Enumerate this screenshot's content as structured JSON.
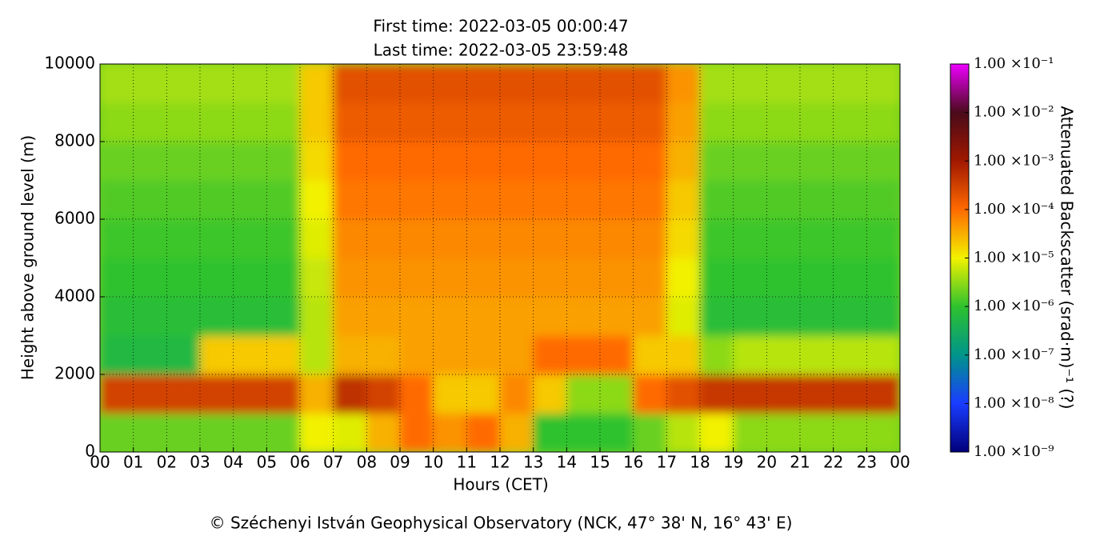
{
  "chart_data": {
    "type": "heatmap",
    "title": [
      "First time: 2022-03-05 00:00:47",
      "Last time: 2022-03-05 23:59:48"
    ],
    "xlabel": "Hours (CET)",
    "ylabel": "Height above ground level (m)",
    "colorbar_label": "Attenuated Backscatter (srad·m)⁻¹ (?)",
    "footer": "© Széchenyi István Geophysical Observatory (NCK, 47° 38' N, 16° 43' E)",
    "x": [
      0,
      1,
      2,
      3,
      4,
      5,
      6,
      7,
      8,
      9,
      10,
      11,
      12,
      13,
      14,
      15,
      16,
      17,
      18,
      19,
      20,
      21,
      22,
      23,
      24
    ],
    "y": [
      0,
      1000,
      2000,
      3000,
      4000,
      5000,
      6000,
      7000,
      8000,
      9000,
      10000
    ],
    "z": [
      [
        2e-06,
        2e-06,
        2e-06,
        2e-06,
        2e-06,
        2e-06,
        1e-05,
        8e-06,
        3e-05,
        0.0001,
        5e-05,
        0.0001,
        3e-05,
        1e-06,
        1e-06,
        1e-06,
        2e-06,
        5e-06,
        1e-05,
        3e-06,
        3e-06,
        3e-06,
        3e-06,
        3e-06
      ],
      [
        0.0003,
        0.0003,
        0.0003,
        0.0003,
        0.0003,
        0.0003,
        3e-05,
        0.0005,
        0.0003,
        0.0001,
        2e-05,
        2e-05,
        6e-05,
        2e-05,
        3e-06,
        3e-06,
        0.0001,
        0.0002,
        0.0004,
        0.0004,
        0.0004,
        0.0004,
        0.0004,
        0.0004
      ],
      [
        6e-07,
        6e-07,
        6e-07,
        2e-05,
        2e-05,
        2e-05,
        5e-06,
        3e-05,
        3e-05,
        4e-05,
        4e-05,
        4e-05,
        4e-05,
        0.0001,
        0.0001,
        0.0001,
        2e-05,
        2e-05,
        3e-06,
        5e-06,
        5e-06,
        5e-06,
        5e-06,
        5e-06
      ],
      [
        8e-07,
        8e-07,
        8e-07,
        8e-07,
        8e-07,
        8e-07,
        5e-06,
        4e-05,
        4e-05,
        4e-05,
        4e-05,
        4e-05,
        4e-05,
        4e-05,
        4e-05,
        4e-05,
        4e-05,
        8e-06,
        8e-07,
        8e-07,
        8e-07,
        8e-07,
        8e-07,
        8e-07
      ],
      [
        1e-06,
        1e-06,
        1e-06,
        1e-06,
        1e-06,
        1e-06,
        6e-06,
        5e-05,
        5e-05,
        5e-05,
        5e-05,
        5e-05,
        5e-05,
        5e-05,
        5e-05,
        5e-05,
        5e-05,
        1e-05,
        1e-06,
        1e-06,
        1e-06,
        1e-06,
        1e-06,
        1e-06
      ],
      [
        1.2e-06,
        1.2e-06,
        1.2e-06,
        1.2e-06,
        1.2e-06,
        1.2e-06,
        8e-06,
        6e-05,
        6e-05,
        6e-05,
        6e-05,
        6e-05,
        6e-05,
        6e-05,
        6e-05,
        6e-05,
        6e-05,
        1.5e-05,
        1.2e-06,
        1.2e-06,
        1.2e-06,
        1.2e-06,
        1.2e-06,
        1.2e-06
      ],
      [
        1.5e-06,
        1.5e-06,
        1.5e-06,
        1.5e-06,
        1.5e-06,
        1.5e-06,
        1e-05,
        8e-05,
        8e-05,
        8e-05,
        8e-05,
        8e-05,
        8e-05,
        8e-05,
        8e-05,
        8e-05,
        8e-05,
        2e-05,
        1.5e-06,
        1.5e-06,
        1.5e-06,
        1.5e-06,
        1.5e-06,
        1.5e-06
      ],
      [
        2e-06,
        2e-06,
        2e-06,
        2e-06,
        2e-06,
        2e-06,
        1.5e-05,
        0.0001,
        0.0001,
        0.0001,
        0.0001,
        0.0001,
        0.0001,
        0.0001,
        0.0001,
        0.0001,
        0.0001,
        3e-05,
        2e-06,
        2e-06,
        2e-06,
        2e-06,
        2e-06,
        2e-06
      ],
      [
        3e-06,
        3e-06,
        3e-06,
        3e-06,
        3e-06,
        3e-06,
        2e-05,
        0.00015,
        0.00015,
        0.00015,
        0.00015,
        0.00015,
        0.00015,
        0.00015,
        0.00015,
        0.00015,
        0.00015,
        4e-05,
        3e-06,
        3e-06,
        3e-06,
        3e-06,
        3e-06,
        3e-06
      ],
      [
        4e-06,
        4e-06,
        4e-06,
        4e-06,
        4e-06,
        4e-06,
        2e-05,
        0.0002,
        0.0002,
        0.0002,
        0.0002,
        0.0002,
        0.0002,
        0.0002,
        0.0002,
        0.0002,
        0.0002,
        5e-05,
        4e-06,
        4e-06,
        4e-06,
        4e-06,
        4e-06,
        4e-06
      ]
    ],
    "xlim": [
      0,
      24
    ],
    "xticks": [
      {
        "value": 0,
        "label": "00"
      },
      {
        "value": 1,
        "label": "01"
      },
      {
        "value": 2,
        "label": "02"
      },
      {
        "value": 3,
        "label": "03"
      },
      {
        "value": 4,
        "label": "04"
      },
      {
        "value": 5,
        "label": "05"
      },
      {
        "value": 6,
        "label": "06"
      },
      {
        "value": 7,
        "label": "07"
      },
      {
        "value": 8,
        "label": "08"
      },
      {
        "value": 9,
        "label": "09"
      },
      {
        "value": 10,
        "label": "10"
      },
      {
        "value": 11,
        "label": "11"
      },
      {
        "value": 12,
        "label": "12"
      },
      {
        "value": 13,
        "label": "13"
      },
      {
        "value": 14,
        "label": "14"
      },
      {
        "value": 15,
        "label": "15"
      },
      {
        "value": 16,
        "label": "16"
      },
      {
        "value": 17,
        "label": "17"
      },
      {
        "value": 18,
        "label": "18"
      },
      {
        "value": 19,
        "label": "19"
      },
      {
        "value": 20,
        "label": "20"
      },
      {
        "value": 21,
        "label": "21"
      },
      {
        "value": 22,
        "label": "22"
      },
      {
        "value": 23,
        "label": "23"
      },
      {
        "value": 24,
        "label": "00"
      }
    ],
    "ylim": [
      0,
      10000
    ],
    "yticks": [
      0,
      2000,
      4000,
      6000,
      8000,
      10000
    ],
    "zlim": [
      1e-09,
      0.1
    ],
    "zscale": "log",
    "zticks": [
      {
        "value": 1e-09,
        "label": "1.00 ×10⁻⁹"
      },
      {
        "value": 1e-08,
        "label": "1.00 ×10⁻⁸"
      },
      {
        "value": 1e-07,
        "label": "1.00 ×10⁻⁷"
      },
      {
        "value": 1e-06,
        "label": "1.00 ×10⁻⁶"
      },
      {
        "value": 1e-05,
        "label": "1.00 ×10⁻⁵"
      },
      {
        "value": 0.0001,
        "label": "1.00 ×10⁻⁴"
      },
      {
        "value": 0.001,
        "label": "1.00 ×10⁻³"
      },
      {
        "value": 0.01,
        "label": "1.00 ×10⁻²"
      },
      {
        "value": 0.1,
        "label": "1.00 ×10⁻¹"
      }
    ],
    "colormap": [
      "#00007a",
      "#1a3cff",
      "#00958a",
      "#2ec22e",
      "#f2f200",
      "#ff6a00",
      "#a01800",
      "#4a0a1a",
      "#ee00ff"
    ],
    "grid": true
  }
}
